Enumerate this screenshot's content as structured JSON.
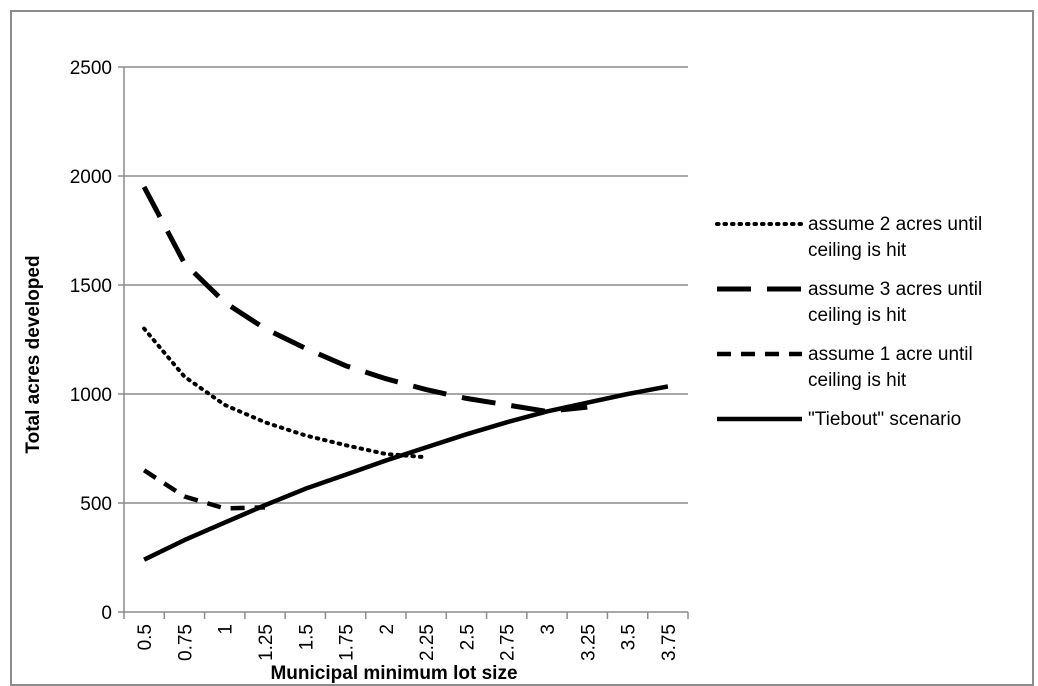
{
  "chart_data": {
    "type": "line",
    "title": "",
    "xlabel": "Municipal minimum lot size",
    "ylabel": "Total acres developed",
    "categories": [
      "0.5",
      "0.75",
      "1",
      "1.25",
      "1.5",
      "1.75",
      "2",
      "2.25",
      "2.5",
      "2.75",
      "3",
      "3.25",
      "3.5",
      "3.75"
    ],
    "y_ticks": [
      "0",
      "500",
      "1000",
      "1500",
      "2000",
      "2500"
    ],
    "ylim": [
      0,
      2500
    ],
    "grid": "horizontal",
    "legend_position": "right",
    "series": [
      {
        "name": "assume 2 acres until ceiling is hit",
        "style": "dotted",
        "values": [
          1300,
          1080,
          950,
          870,
          810,
          765,
          725,
          710,
          null,
          null,
          null,
          null,
          null,
          null
        ]
      },
      {
        "name": "assume 3 acres until ceiling is hit",
        "style": "long-dash",
        "values": [
          1950,
          1600,
          1420,
          1300,
          1210,
          1130,
          1070,
          1020,
          980,
          950,
          920,
          940,
          null,
          null
        ]
      },
      {
        "name": "assume 1 acre until ceiling is hit",
        "style": "dashed",
        "values": [
          650,
          530,
          475,
          480,
          null,
          null,
          null,
          null,
          null,
          null,
          null,
          null,
          null,
          null
        ]
      },
      {
        "name": "\"Tiebout\" scenario",
        "style": "solid",
        "values": [
          240,
          330,
          410,
          490,
          565,
          630,
          695,
          755,
          815,
          870,
          920,
          960,
          1000,
          1035
        ]
      }
    ]
  },
  "colors": {
    "line": "#000000",
    "grid": "#8c8c8c",
    "frame": "#8c8c8c"
  }
}
